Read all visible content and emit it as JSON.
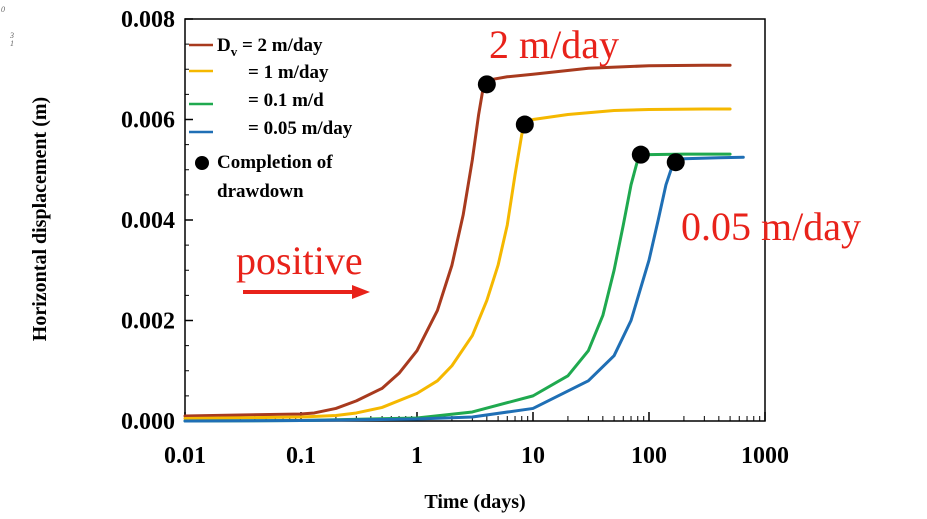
{
  "corner_marks": [
    "0",
    "3",
    "1"
  ],
  "chart_data": {
    "type": "line",
    "title": "",
    "xlabel": "Time (days)",
    "ylabel": "Horizontal displacement (m)",
    "xscale": "log",
    "xlim": [
      0.01,
      1000
    ],
    "ylim": [
      0,
      0.008
    ],
    "xticks": [
      0.01,
      0.1,
      1,
      10,
      100,
      1000
    ],
    "xtick_labels": [
      "0.01",
      "0.1",
      "1",
      "10",
      "100",
      "1000"
    ],
    "yticks": [
      0,
      0.002,
      0.004,
      0.006,
      0.008
    ],
    "ytick_labels": [
      "0.000",
      "0.002",
      "0.004",
      "0.006",
      "0.008"
    ],
    "grid": false,
    "legend_position": "top-left",
    "series": [
      {
        "name": "Dv = 2 m/day",
        "legend_label": {
          "main": "D",
          "sub": "v",
          "rest": " = 2 m/day"
        },
        "color": "#A83A1E",
        "x": [
          0.01,
          0.03,
          0.1,
          0.13,
          0.2,
          0.3,
          0.5,
          0.7,
          1.0,
          1.5,
          2.0,
          2.5,
          3.0,
          3.4,
          3.7,
          4.0,
          4.5,
          6.0,
          10,
          30,
          100,
          300,
          500
        ],
        "y": [
          0.0001,
          0.00012,
          0.00014,
          0.00016,
          0.00025,
          0.0004,
          0.00065,
          0.00095,
          0.0014,
          0.0022,
          0.0031,
          0.0041,
          0.0052,
          0.0061,
          0.0066,
          0.0067,
          0.0068,
          0.00685,
          0.0069,
          0.00702,
          0.00707,
          0.00708,
          0.00708
        ]
      },
      {
        "name": "= 1 m/day",
        "legend_label": {
          "main": "",
          "sub": "",
          "rest": "= 1 m/day"
        },
        "color": "#F5B800",
        "x": [
          0.01,
          0.1,
          0.2,
          0.3,
          0.5,
          1.0,
          1.5,
          2.0,
          3.0,
          4.0,
          5.0,
          6.0,
          7.0,
          8.0,
          8.5,
          10,
          20,
          50,
          100,
          300,
          500
        ],
        "y": [
          5e-05,
          8e-05,
          0.00011,
          0.00016,
          0.00027,
          0.00055,
          0.0008,
          0.0011,
          0.0017,
          0.0024,
          0.0031,
          0.0039,
          0.0049,
          0.0057,
          0.0059,
          0.006,
          0.0061,
          0.00618,
          0.0062,
          0.00621,
          0.00621
        ]
      },
      {
        "name": "= 0.1 m/d",
        "legend_label": {
          "main": "",
          "sub": "",
          "rest": "= 0.1 m/d"
        },
        "color": "#1FA94F",
        "x": [
          0.01,
          0.1,
          1,
          3,
          10,
          20,
          30,
          40,
          50,
          60,
          70,
          80,
          85,
          100,
          200,
          500
        ],
        "y": [
          0,
          1e-05,
          6e-05,
          0.00018,
          0.0005,
          0.0009,
          0.0014,
          0.0021,
          0.003,
          0.0039,
          0.0047,
          0.0052,
          0.0053,
          0.0053,
          0.00531,
          0.00531
        ]
      },
      {
        "name": "= 0.05 m/day",
        "legend_label": {
          "main": "",
          "sub": "",
          "rest": "= 0.05 m/day"
        },
        "color": "#1F6FB5",
        "x": [
          0.01,
          0.1,
          1,
          3,
          10,
          30,
          50,
          70,
          100,
          120,
          140,
          160,
          170,
          200,
          400,
          650
        ],
        "y": [
          0,
          1e-05,
          4e-05,
          8e-05,
          0.00025,
          0.0008,
          0.0013,
          0.002,
          0.0032,
          0.004,
          0.0047,
          0.0051,
          0.0052,
          0.00522,
          0.00524,
          0.00525
        ]
      }
    ],
    "completion_points": {
      "legend_label": "Completion of drawdown",
      "legend_lines": [
        "Completion of",
        "drawdown"
      ],
      "x": [
        4.0,
        8.5,
        85,
        170
      ],
      "y": [
        0.0067,
        0.0059,
        0.0053,
        0.00515
      ],
      "color": "#000000"
    },
    "annotations": [
      {
        "text": "2 m/day",
        "color": "#E8221A"
      },
      {
        "text": "0.05 m/day",
        "color": "#E8221A"
      },
      {
        "text": "positive",
        "color": "#E8221A",
        "arrow": "right"
      }
    ]
  }
}
